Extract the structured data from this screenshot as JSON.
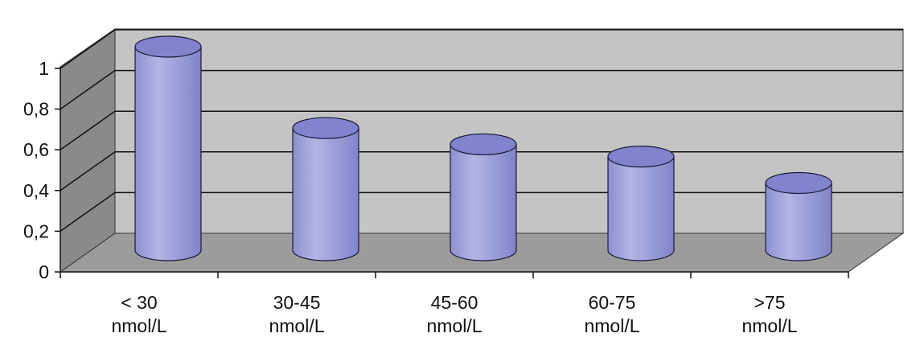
{
  "chart_data": {
    "type": "bar",
    "style": "3d-cylinder",
    "categories": [
      [
        "< 30",
        "nmol/L"
      ],
      [
        "30-45",
        "nmol/L"
      ],
      [
        "45-60",
        "nmol/L"
      ],
      [
        "60-75",
        "nmol/L"
      ],
      [
        ">75",
        "nmol/L"
      ]
    ],
    "values": [
      1.0,
      0.6,
      0.52,
      0.46,
      0.33
    ],
    "y_ticks": [
      "0",
      "0,2",
      "0,4",
      "0,6",
      "0,8",
      "1"
    ],
    "ylim": [
      0,
      1
    ],
    "title": "",
    "xlabel": "",
    "ylabel": "",
    "grid": true,
    "legend": "none",
    "colors": {
      "bar_body": "#a7a9dc",
      "bar_top": "#8184cc",
      "back_wall": "#c4c4c4",
      "side_wall": "#8a8a8a",
      "floor": "#9c9c9c",
      "gridline": "#111111"
    }
  }
}
